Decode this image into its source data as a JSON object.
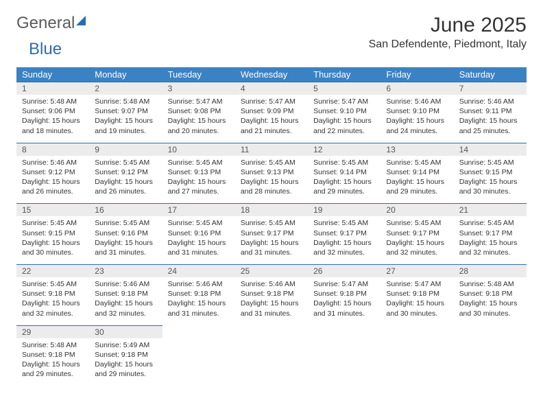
{
  "logo": {
    "part1": "General",
    "part2": "Blue"
  },
  "title": "June 2025",
  "location": "San Defendente, Piedmont, Italy",
  "colors": {
    "header_bg": "#3b82c4",
    "header_text": "#ffffff",
    "daynum_bg": "#ececec",
    "daynum_border": "#2b6cb0",
    "text": "#333333"
  },
  "weekdays": [
    "Sunday",
    "Monday",
    "Tuesday",
    "Wednesday",
    "Thursday",
    "Friday",
    "Saturday"
  ],
  "weeks": [
    [
      {
        "day": "1",
        "sunrise": "Sunrise: 5:48 AM",
        "sunset": "Sunset: 9:06 PM",
        "day1": "Daylight: 15 hours",
        "day2": "and 18 minutes."
      },
      {
        "day": "2",
        "sunrise": "Sunrise: 5:48 AM",
        "sunset": "Sunset: 9:07 PM",
        "day1": "Daylight: 15 hours",
        "day2": "and 19 minutes."
      },
      {
        "day": "3",
        "sunrise": "Sunrise: 5:47 AM",
        "sunset": "Sunset: 9:08 PM",
        "day1": "Daylight: 15 hours",
        "day2": "and 20 minutes."
      },
      {
        "day": "4",
        "sunrise": "Sunrise: 5:47 AM",
        "sunset": "Sunset: 9:09 PM",
        "day1": "Daylight: 15 hours",
        "day2": "and 21 minutes."
      },
      {
        "day": "5",
        "sunrise": "Sunrise: 5:47 AM",
        "sunset": "Sunset: 9:10 PM",
        "day1": "Daylight: 15 hours",
        "day2": "and 22 minutes."
      },
      {
        "day": "6",
        "sunrise": "Sunrise: 5:46 AM",
        "sunset": "Sunset: 9:10 PM",
        "day1": "Daylight: 15 hours",
        "day2": "and 24 minutes."
      },
      {
        "day": "7",
        "sunrise": "Sunrise: 5:46 AM",
        "sunset": "Sunset: 9:11 PM",
        "day1": "Daylight: 15 hours",
        "day2": "and 25 minutes."
      }
    ],
    [
      {
        "day": "8",
        "sunrise": "Sunrise: 5:46 AM",
        "sunset": "Sunset: 9:12 PM",
        "day1": "Daylight: 15 hours",
        "day2": "and 26 minutes."
      },
      {
        "day": "9",
        "sunrise": "Sunrise: 5:45 AM",
        "sunset": "Sunset: 9:12 PM",
        "day1": "Daylight: 15 hours",
        "day2": "and 26 minutes."
      },
      {
        "day": "10",
        "sunrise": "Sunrise: 5:45 AM",
        "sunset": "Sunset: 9:13 PM",
        "day1": "Daylight: 15 hours",
        "day2": "and 27 minutes."
      },
      {
        "day": "11",
        "sunrise": "Sunrise: 5:45 AM",
        "sunset": "Sunset: 9:13 PM",
        "day1": "Daylight: 15 hours",
        "day2": "and 28 minutes."
      },
      {
        "day": "12",
        "sunrise": "Sunrise: 5:45 AM",
        "sunset": "Sunset: 9:14 PM",
        "day1": "Daylight: 15 hours",
        "day2": "and 29 minutes."
      },
      {
        "day": "13",
        "sunrise": "Sunrise: 5:45 AM",
        "sunset": "Sunset: 9:14 PM",
        "day1": "Daylight: 15 hours",
        "day2": "and 29 minutes."
      },
      {
        "day": "14",
        "sunrise": "Sunrise: 5:45 AM",
        "sunset": "Sunset: 9:15 PM",
        "day1": "Daylight: 15 hours",
        "day2": "and 30 minutes."
      }
    ],
    [
      {
        "day": "15",
        "sunrise": "Sunrise: 5:45 AM",
        "sunset": "Sunset: 9:15 PM",
        "day1": "Daylight: 15 hours",
        "day2": "and 30 minutes."
      },
      {
        "day": "16",
        "sunrise": "Sunrise: 5:45 AM",
        "sunset": "Sunset: 9:16 PM",
        "day1": "Daylight: 15 hours",
        "day2": "and 31 minutes."
      },
      {
        "day": "17",
        "sunrise": "Sunrise: 5:45 AM",
        "sunset": "Sunset: 9:16 PM",
        "day1": "Daylight: 15 hours",
        "day2": "and 31 minutes."
      },
      {
        "day": "18",
        "sunrise": "Sunrise: 5:45 AM",
        "sunset": "Sunset: 9:17 PM",
        "day1": "Daylight: 15 hours",
        "day2": "and 31 minutes."
      },
      {
        "day": "19",
        "sunrise": "Sunrise: 5:45 AM",
        "sunset": "Sunset: 9:17 PM",
        "day1": "Daylight: 15 hours",
        "day2": "and 32 minutes."
      },
      {
        "day": "20",
        "sunrise": "Sunrise: 5:45 AM",
        "sunset": "Sunset: 9:17 PM",
        "day1": "Daylight: 15 hours",
        "day2": "and 32 minutes."
      },
      {
        "day": "21",
        "sunrise": "Sunrise: 5:45 AM",
        "sunset": "Sunset: 9:17 PM",
        "day1": "Daylight: 15 hours",
        "day2": "and 32 minutes."
      }
    ],
    [
      {
        "day": "22",
        "sunrise": "Sunrise: 5:45 AM",
        "sunset": "Sunset: 9:18 PM",
        "day1": "Daylight: 15 hours",
        "day2": "and 32 minutes."
      },
      {
        "day": "23",
        "sunrise": "Sunrise: 5:46 AM",
        "sunset": "Sunset: 9:18 PM",
        "day1": "Daylight: 15 hours",
        "day2": "and 32 minutes."
      },
      {
        "day": "24",
        "sunrise": "Sunrise: 5:46 AM",
        "sunset": "Sunset: 9:18 PM",
        "day1": "Daylight: 15 hours",
        "day2": "and 31 minutes."
      },
      {
        "day": "25",
        "sunrise": "Sunrise: 5:46 AM",
        "sunset": "Sunset: 9:18 PM",
        "day1": "Daylight: 15 hours",
        "day2": "and 31 minutes."
      },
      {
        "day": "26",
        "sunrise": "Sunrise: 5:47 AM",
        "sunset": "Sunset: 9:18 PM",
        "day1": "Daylight: 15 hours",
        "day2": "and 31 minutes."
      },
      {
        "day": "27",
        "sunrise": "Sunrise: 5:47 AM",
        "sunset": "Sunset: 9:18 PM",
        "day1": "Daylight: 15 hours",
        "day2": "and 30 minutes."
      },
      {
        "day": "28",
        "sunrise": "Sunrise: 5:48 AM",
        "sunset": "Sunset: 9:18 PM",
        "day1": "Daylight: 15 hours",
        "day2": "and 30 minutes."
      }
    ],
    [
      {
        "day": "29",
        "sunrise": "Sunrise: 5:48 AM",
        "sunset": "Sunset: 9:18 PM",
        "day1": "Daylight: 15 hours",
        "day2": "and 29 minutes."
      },
      {
        "day": "30",
        "sunrise": "Sunrise: 5:49 AM",
        "sunset": "Sunset: 9:18 PM",
        "day1": "Daylight: 15 hours",
        "day2": "and 29 minutes."
      },
      null,
      null,
      null,
      null,
      null
    ]
  ]
}
